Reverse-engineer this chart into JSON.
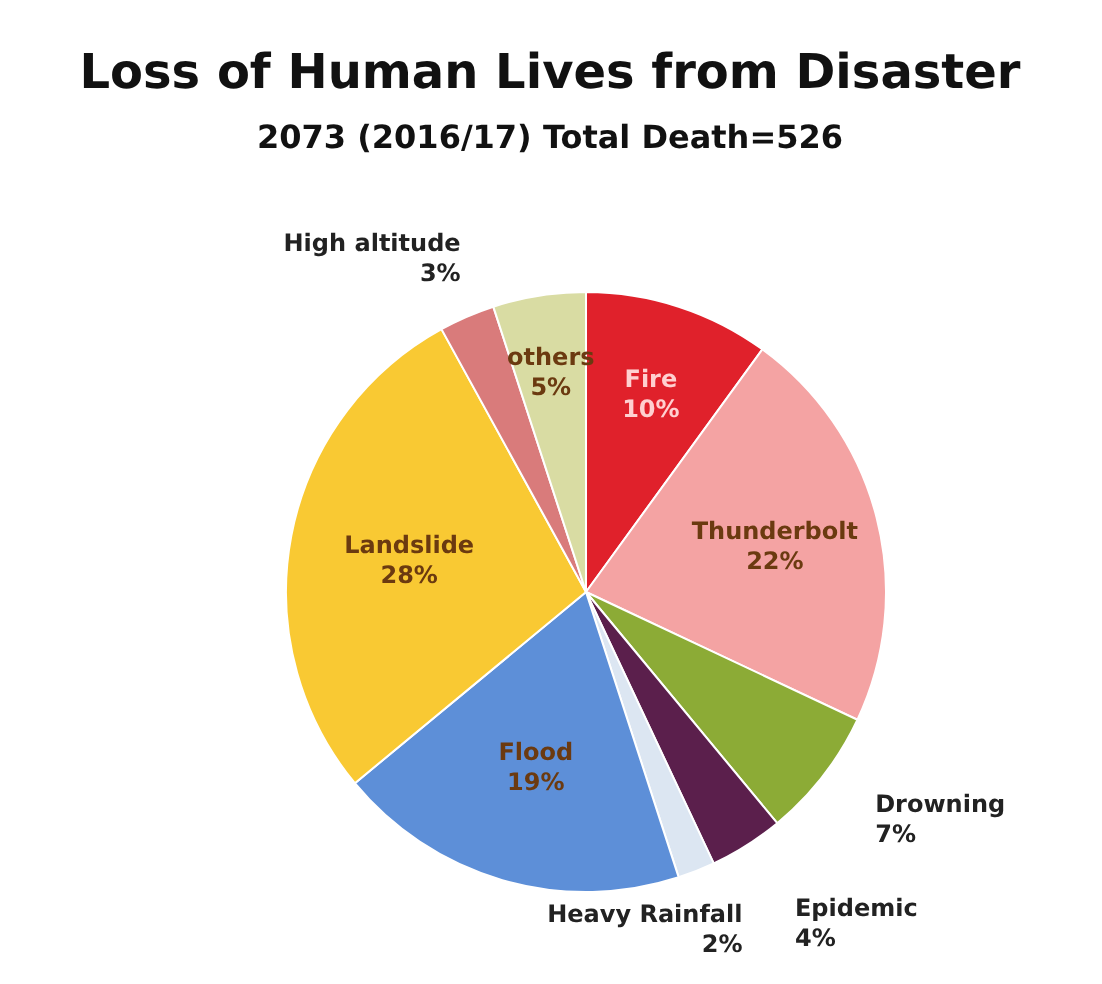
{
  "chart_data": {
    "type": "pie",
    "title": "Loss of Human Lives from Disaster",
    "subtitle": "2073 (2016/17) Total Death=526",
    "categories": [
      "Fire",
      "Thunderbolt",
      "Drowning",
      "Epidemic",
      "Heavy Rainfall",
      "Flood",
      "Landslide",
      "High altitude",
      "others"
    ],
    "values": [
      10,
      22,
      7,
      4,
      2,
      19,
      28,
      3,
      5
    ],
    "value_labels": [
      "10%",
      "22%",
      "7%",
      "4%",
      "2%",
      "19%",
      "28%",
      "3%",
      "5%"
    ],
    "colors": [
      "#e0212b",
      "#f4a3a3",
      "#8cab36",
      "#5b1f4c",
      "#dce6f2",
      "#5d8fd8",
      "#f9c933",
      "#d97b7b",
      "#d9dca3"
    ],
    "legend": false
  }
}
